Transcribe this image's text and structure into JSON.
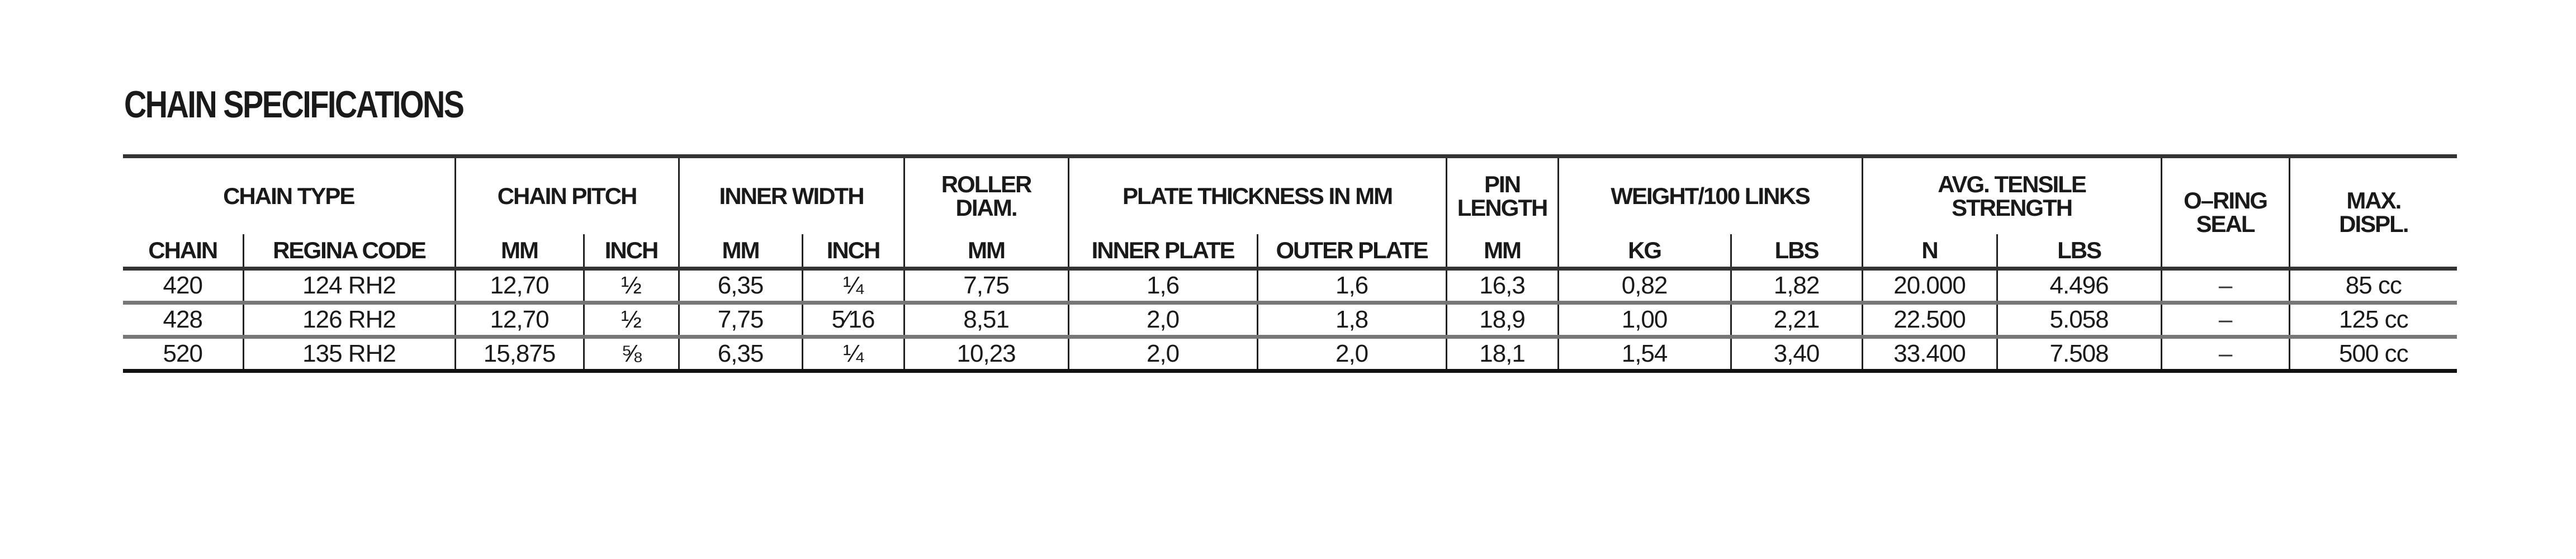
{
  "title": "CHAIN SPECIFICATIONS",
  "header_groups": {
    "chain_type": "CHAIN TYPE",
    "chain_pitch": "CHAIN PITCH",
    "inner_width": "INNER WIDTH",
    "roller_diam": "ROLLER DIAM.",
    "plate_thickness": "PLATE THICKNESS IN MM",
    "pin_length": "PIN LENGTH",
    "weight": "WEIGHT/100 LINKS",
    "tensile": "AVG. TENSILE STRENGTH",
    "oring": "O–RING SEAL",
    "max_displ": "MAX. DISPL."
  },
  "sub_headers": [
    "CHAIN",
    "REGINA CODE",
    "MM",
    "INCH",
    "MM",
    "INCH",
    "MM",
    "INNER PLATE",
    "OUTER PLATE",
    "MM",
    "KG",
    "LBS",
    "N",
    "LBS"
  ],
  "rows": [
    [
      "420",
      "124 RH2",
      "12,70",
      "½",
      "6,35",
      "¼",
      "7,75",
      "1,6",
      "1,6",
      "16,3",
      "0,82",
      "1,82",
      "20.000",
      "4.496",
      "–",
      "85 cc"
    ],
    [
      "428",
      "126 RH2",
      "12,70",
      "½",
      "7,75",
      "5⁄16",
      "8,51",
      "2,0",
      "1,8",
      "18,9",
      "1,00",
      "2,21",
      "22.500",
      "5.058",
      "–",
      "125 cc"
    ],
    [
      "520",
      "135 RH2",
      "15,875",
      "⅝",
      "6,35",
      "¼",
      "10,23",
      "2,0",
      "2,0",
      "18,1",
      "1,54",
      "3,40",
      "33.400",
      "7.508",
      "–",
      "500 cc"
    ]
  ]
}
